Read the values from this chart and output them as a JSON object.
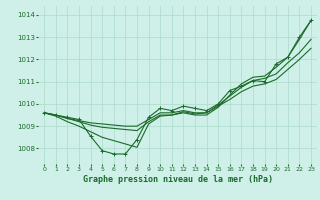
{
  "title": "Graphe pression niveau de la mer (hPa)",
  "bg_color": "#cff0e8",
  "grid_color": "#b0ddd0",
  "line_color": "#1a6b2a",
  "xlim": [
    -0.5,
    23.5
  ],
  "ylim": [
    1007.3,
    1014.4
  ],
  "yticks": [
    1008,
    1009,
    1010,
    1011,
    1012,
    1013,
    1014
  ],
  "xticks": [
    0,
    1,
    2,
    3,
    4,
    5,
    6,
    7,
    8,
    9,
    10,
    11,
    12,
    13,
    14,
    15,
    16,
    17,
    18,
    19,
    20,
    21,
    22,
    23
  ],
  "series": [
    {
      "x": [
        0,
        1,
        2,
        3,
        4,
        5,
        6,
        7,
        8,
        9,
        10,
        11,
        12,
        13,
        14,
        15,
        16,
        17,
        18,
        19,
        20,
        21,
        22,
        23
      ],
      "y": [
        1009.6,
        1009.5,
        1009.4,
        1009.3,
        1008.55,
        1007.9,
        1007.75,
        1007.75,
        1008.4,
        1009.4,
        1009.8,
        1009.7,
        1009.9,
        1009.8,
        1009.7,
        1010.0,
        1010.6,
        1010.8,
        1011.05,
        1011.0,
        1011.8,
        1012.1,
        1013.0,
        1013.75
      ],
      "marker": true
    },
    {
      "x": [
        0,
        1,
        2,
        3,
        4,
        5,
        6,
        7,
        8,
        9,
        10,
        11,
        12,
        13,
        14,
        15,
        16,
        17,
        18,
        19,
        20,
        21,
        22,
        23
      ],
      "y": [
        1009.6,
        1009.5,
        1009.35,
        1009.25,
        1009.15,
        1009.1,
        1009.05,
        1009.0,
        1009.0,
        1009.3,
        1009.6,
        1009.6,
        1009.7,
        1009.6,
        1009.6,
        1009.9,
        1010.2,
        1010.55,
        1010.8,
        1010.9,
        1011.1,
        1011.55,
        1012.0,
        1012.5
      ],
      "marker": false
    },
    {
      "x": [
        0,
        1,
        2,
        3,
        4,
        5,
        6,
        7,
        8,
        9,
        10,
        11,
        12,
        13,
        14,
        15,
        16,
        17,
        18,
        19,
        20,
        21,
        22,
        23
      ],
      "y": [
        1009.6,
        1009.5,
        1009.35,
        1009.2,
        1009.05,
        1008.95,
        1008.9,
        1008.85,
        1008.8,
        1009.2,
        1009.5,
        1009.5,
        1009.65,
        1009.55,
        1009.6,
        1009.95,
        1010.35,
        1010.75,
        1011.05,
        1011.15,
        1011.35,
        1011.85,
        1012.3,
        1012.9
      ],
      "marker": false
    },
    {
      "x": [
        0,
        1,
        2,
        3,
        4,
        5,
        6,
        7,
        8,
        9,
        10,
        11,
        12,
        13,
        14,
        15,
        16,
        17,
        18,
        19,
        20,
        21,
        22,
        23
      ],
      "y": [
        1009.6,
        1009.45,
        1009.2,
        1009.0,
        1008.75,
        1008.5,
        1008.35,
        1008.2,
        1008.05,
        1009.1,
        1009.45,
        1009.5,
        1009.6,
        1009.5,
        1009.5,
        1009.85,
        1010.4,
        1010.9,
        1011.2,
        1011.25,
        1011.65,
        1012.1,
        1012.9,
        1013.75
      ],
      "marker": false
    }
  ],
  "ylabel_fontsize": 5,
  "xlabel_fontsize": 6,
  "tick_fontsize": 4.5
}
